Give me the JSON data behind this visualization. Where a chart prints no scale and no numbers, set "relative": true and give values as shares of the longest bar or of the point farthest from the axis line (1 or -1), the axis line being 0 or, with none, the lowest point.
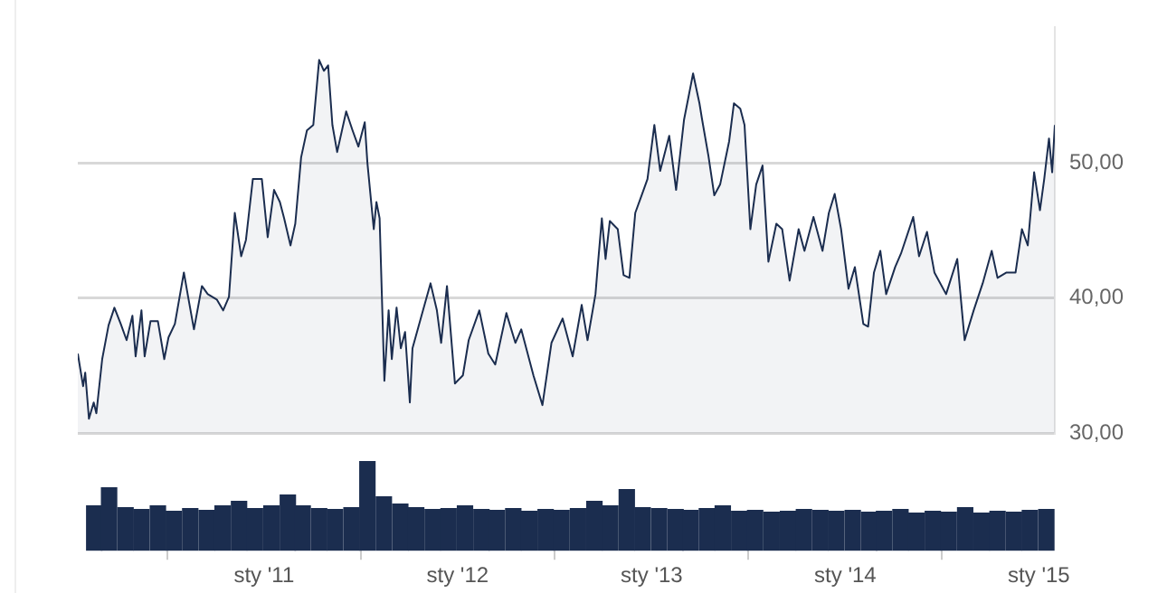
{
  "chart_data": [
    {
      "type": "area",
      "color": "#1b2d4f",
      "xlim": [
        "2010-01-15",
        "2015-01-31"
      ],
      "ylim": [
        30,
        60
      ],
      "yticks": [
        {
          "value": 30,
          "label": "30,00"
        },
        {
          "value": 40,
          "label": "40,00"
        },
        {
          "value": 50,
          "label": "50,00"
        }
      ],
      "grid": "y",
      "tick_labels": "y",
      "x": [
        "2010-01-15",
        "2010-01-25",
        "2010-01-29",
        "2010-02-05",
        "2010-02-14",
        "2010-02-19",
        "2010-03-02",
        "2010-03-14",
        "2010-03-25",
        "2010-04-06",
        "2010-04-17",
        "2010-04-28",
        "2010-05-04",
        "2010-05-15",
        "2010-05-21",
        "2010-06-01",
        "2010-06-15",
        "2010-06-27",
        "2010-07-05",
        "2010-07-17",
        "2010-08-03",
        "2010-08-11",
        "2010-08-22",
        "2010-09-06",
        "2010-09-17",
        "2010-10-04",
        "2010-10-16",
        "2010-10-27",
        "2010-11-07",
        "2010-11-19",
        "2010-11-28",
        "2010-12-11",
        "2010-12-28",
        "2011-01-08",
        "2011-01-20",
        "2011-01-31",
        "2011-02-08",
        "2011-02-20",
        "2011-03-01",
        "2011-03-12",
        "2011-03-23",
        "2011-04-04",
        "2011-04-15",
        "2011-04-24",
        "2011-05-02",
        "2011-05-10",
        "2011-05-19",
        "2011-06-05",
        "2011-06-17",
        "2011-06-28",
        "2011-07-10",
        "2011-07-15",
        "2011-07-27",
        "2011-08-01",
        "2011-08-07",
        "2011-08-16",
        "2011-08-24",
        "2011-08-30",
        "2011-09-08",
        "2011-09-16",
        "2011-09-24",
        "2011-10-03",
        "2011-10-08",
        "2011-10-25",
        "2011-11-11",
        "2011-11-23",
        "2011-12-01",
        "2011-12-12",
        "2011-12-27",
        "2012-01-11",
        "2012-01-22",
        "2012-02-11",
        "2012-02-28",
        "2012-03-12",
        "2012-04-02",
        "2012-04-19",
        "2012-04-30",
        "2012-05-23",
        "2012-06-09",
        "2012-06-26",
        "2012-07-17",
        "2012-08-05",
        "2012-08-22",
        "2012-09-02",
        "2012-09-17",
        "2012-09-22",
        "2012-09-29",
        "2012-10-06",
        "2012-10-14",
        "2012-10-29",
        "2012-11-09",
        "2012-11-20",
        "2012-12-01",
        "2012-12-13",
        "2012-12-24",
        "2013-01-06",
        "2013-01-17",
        "2013-02-03",
        "2013-02-16",
        "2013-03-03",
        "2013-03-20",
        "2013-04-01",
        "2013-04-06",
        "2013-04-18",
        "2013-04-29",
        "2013-05-10",
        "2013-05-27",
        "2013-06-05",
        "2013-06-17",
        "2013-06-25",
        "2013-07-06",
        "2013-07-17",
        "2013-07-29",
        "2013-08-09",
        "2013-08-24",
        "2013-09-04",
        "2013-09-18",
        "2013-10-05",
        "2013-10-16",
        "2013-11-02",
        "2013-11-19",
        "2013-12-01",
        "2013-12-12",
        "2013-12-24",
        "2014-01-07",
        "2014-01-19",
        "2014-02-04",
        "2014-02-13",
        "2014-02-24",
        "2014-03-08",
        "2014-03-19",
        "2014-04-05",
        "2014-04-16",
        "2014-05-09",
        "2014-05-20",
        "2014-06-04",
        "2014-06-18",
        "2014-07-10",
        "2014-07-31",
        "2014-08-14",
        "2014-08-31",
        "2014-09-17",
        "2014-10-04",
        "2014-10-15",
        "2014-11-01",
        "2014-11-18",
        "2014-11-30",
        "2014-12-11",
        "2014-12-23",
        "2015-01-03",
        "2015-01-11",
        "2015-01-20",
        "2015-01-26",
        "2015-01-31"
      ],
      "values": [
        35.9,
        33.5,
        34.5,
        31.1,
        32.3,
        31.5,
        35.5,
        38.0,
        39.3,
        38.1,
        36.9,
        38.7,
        35.7,
        39.1,
        35.7,
        38.3,
        38.3,
        35.5,
        37.1,
        38.1,
        41.9,
        40.1,
        37.7,
        40.9,
        40.3,
        39.9,
        39.1,
        40.1,
        46.3,
        43.1,
        44.3,
        48.8,
        48.8,
        44.5,
        48.0,
        47.1,
        45.9,
        43.9,
        45.5,
        50.4,
        52.4,
        52.8,
        57.6,
        56.8,
        57.2,
        52.8,
        50.8,
        53.8,
        52.4,
        51.2,
        53.0,
        50.0,
        45.1,
        47.1,
        45.9,
        33.9,
        39.1,
        35.5,
        39.3,
        36.3,
        37.5,
        32.3,
        36.3,
        38.7,
        41.1,
        39.1,
        36.7,
        40.9,
        33.7,
        34.3,
        36.9,
        39.1,
        35.9,
        35.1,
        38.9,
        36.7,
        37.7,
        34.3,
        32.1,
        36.7,
        38.5,
        35.7,
        39.5,
        36.9,
        40.3,
        42.7,
        45.9,
        42.9,
        45.7,
        45.1,
        41.7,
        41.5,
        46.3,
        47.6,
        48.8,
        52.8,
        49.4,
        52.0,
        48.0,
        53.2,
        56.6,
        54.4,
        53.2,
        50.5,
        47.6,
        48.4,
        51.6,
        54.4,
        54.0,
        52.8,
        45.1,
        48.4,
        49.8,
        42.7,
        45.5,
        45.1,
        41.3,
        45.1,
        43.5,
        46.0,
        43.5,
        46.3,
        47.7,
        45.1,
        40.7,
        42.3,
        38.1,
        37.9,
        41.9,
        43.5,
        40.3,
        42.3,
        43.3,
        46.0,
        43.1,
        44.9,
        41.9,
        40.3,
        42.9,
        36.9,
        39.1,
        41.1,
        43.5,
        41.5,
        41.9,
        41.9,
        45.1,
        43.9,
        49.3,
        46.5,
        48.8,
        51.8,
        49.3,
        52.8
      ]
    },
    {
      "type": "bar",
      "relative": true,
      "color": "#1b2d4f",
      "xlim": [
        "2010-01-15",
        "2015-01-31"
      ],
      "tick_labels": "x",
      "xticks": [
        {
          "value": "2011-01-01",
          "label": "sty '11"
        },
        {
          "value": "2012-01-01",
          "label": "sty '12"
        },
        {
          "value": "2013-01-01",
          "label": "sty '13"
        },
        {
          "value": "2014-01-01",
          "label": "sty '14"
        },
        {
          "value": "2015-01-01",
          "label": "sty '15"
        }
      ],
      "x": [
        "2010-02-15",
        "2010-03-15",
        "2010-04-15",
        "2010-05-15",
        "2010-06-15",
        "2010-07-15",
        "2010-08-15",
        "2010-09-15",
        "2010-10-15",
        "2010-11-15",
        "2010-12-15",
        "2011-01-15",
        "2011-02-15",
        "2011-03-15",
        "2011-04-15",
        "2011-05-15",
        "2011-06-15",
        "2011-07-15",
        "2011-08-15",
        "2011-09-15",
        "2011-10-15",
        "2011-11-15",
        "2011-12-15",
        "2012-01-15",
        "2012-02-15",
        "2012-03-15",
        "2012-04-15",
        "2012-05-15",
        "2012-06-15",
        "2012-07-15",
        "2012-08-15",
        "2012-09-15",
        "2012-10-15",
        "2012-11-15",
        "2012-12-15",
        "2013-01-15",
        "2013-02-15",
        "2013-03-15",
        "2013-04-15",
        "2013-05-15",
        "2013-06-15",
        "2013-07-15",
        "2013-08-15",
        "2013-09-15",
        "2013-10-15",
        "2013-11-15",
        "2013-12-15",
        "2014-01-15",
        "2014-02-15",
        "2014-03-15",
        "2014-04-15",
        "2014-05-15",
        "2014-06-15",
        "2014-07-15",
        "2014-08-15",
        "2014-09-15",
        "2014-10-15",
        "2014-11-15",
        "2014-12-15",
        "2015-01-15"
      ],
      "values": [
        0.5,
        0.7,
        0.48,
        0.46,
        0.5,
        0.44,
        0.47,
        0.45,
        0.5,
        0.55,
        0.47,
        0.5,
        0.62,
        0.5,
        0.47,
        0.46,
        0.48,
        1,
        0.6,
        0.52,
        0.48,
        0.46,
        0.47,
        0.5,
        0.46,
        0.45,
        0.47,
        0.44,
        0.46,
        0.45,
        0.47,
        0.55,
        0.5,
        0.68,
        0.48,
        0.47,
        0.46,
        0.45,
        0.47,
        0.5,
        0.44,
        0.45,
        0.43,
        0.44,
        0.46,
        0.45,
        0.44,
        0.45,
        0.43,
        0.44,
        0.46,
        0.42,
        0.44,
        0.43,
        0.48,
        0.42,
        0.44,
        0.43,
        0.45,
        0.46
      ]
    }
  ]
}
